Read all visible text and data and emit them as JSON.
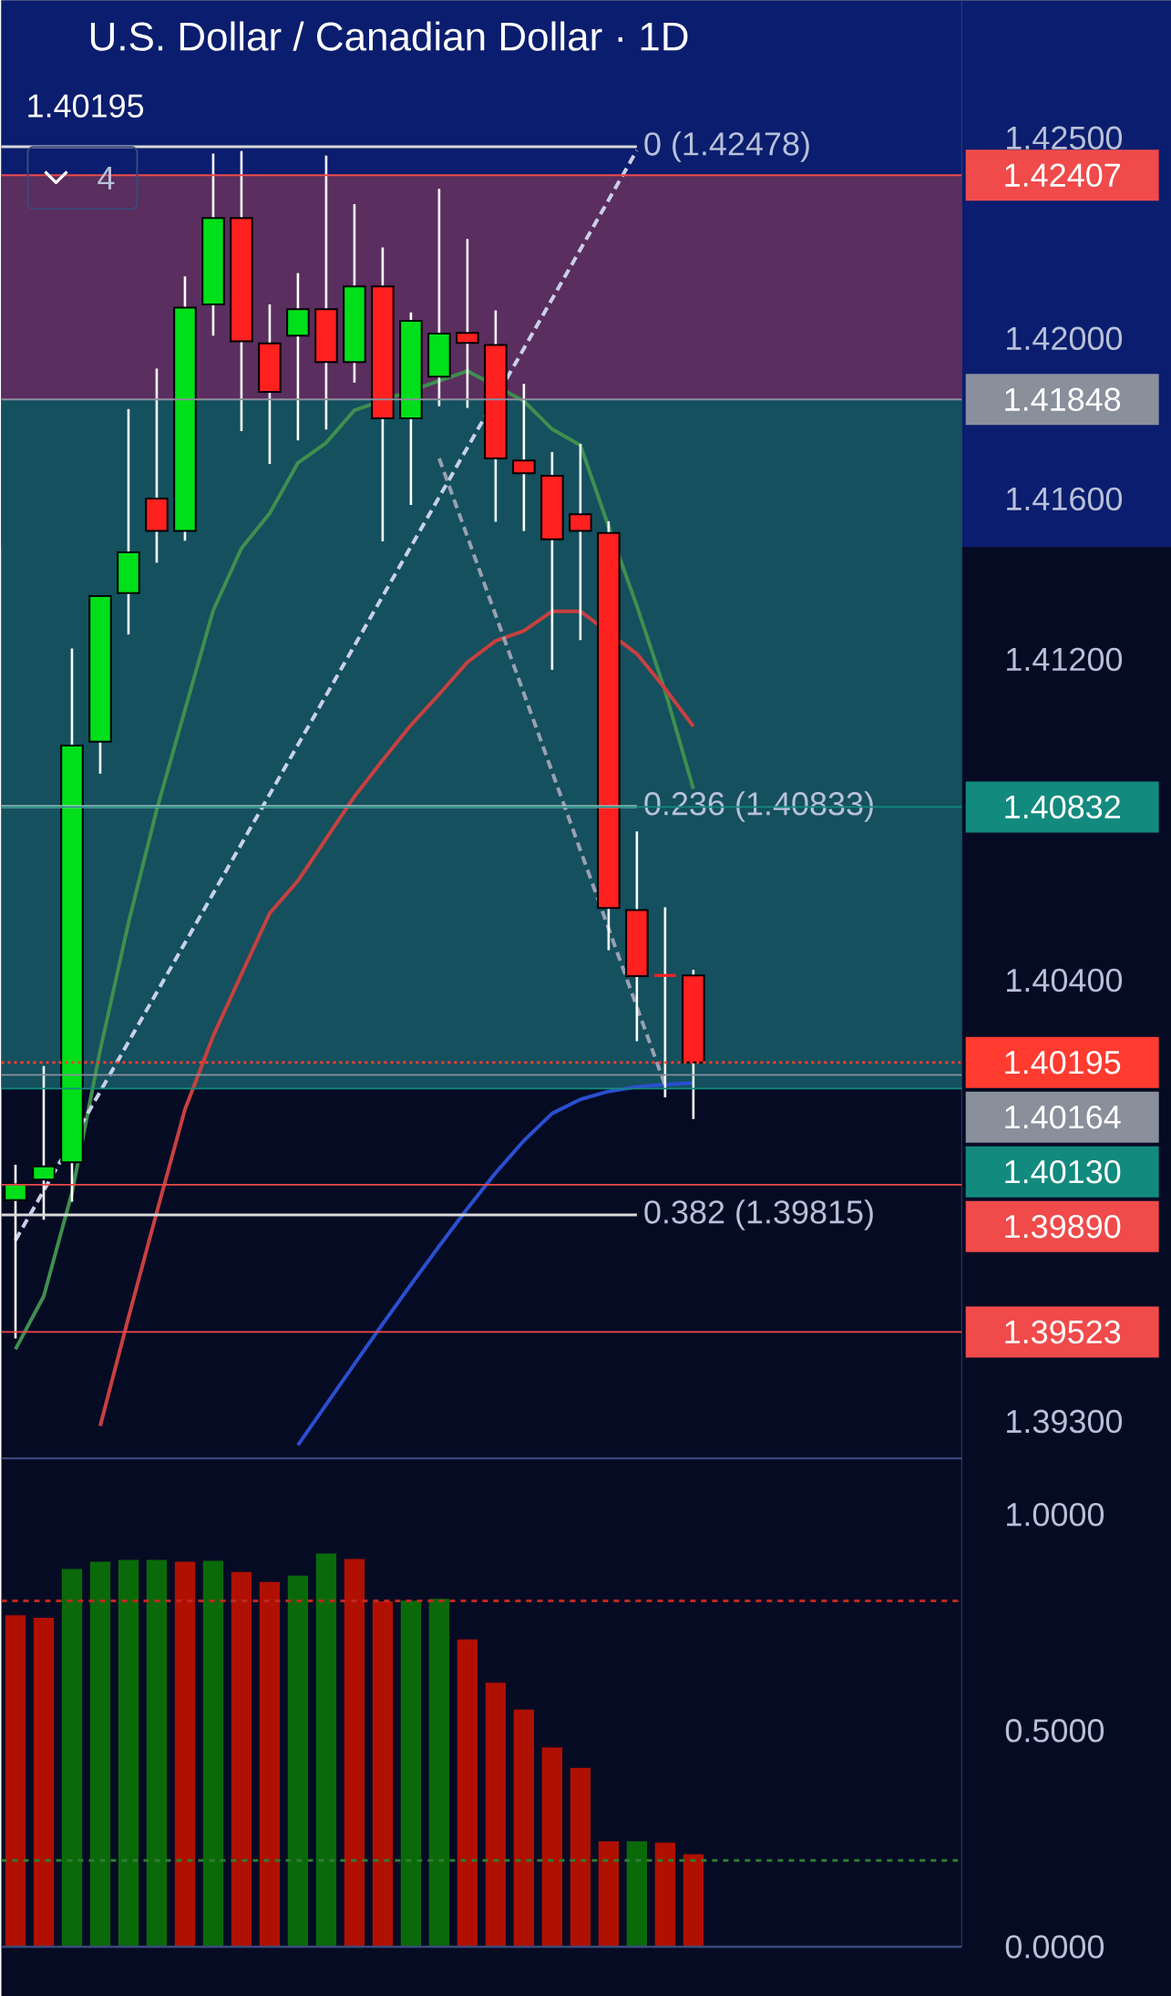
{
  "chart_data": [
    {
      "type": "candlestick",
      "title": "U.S. Dollar / Canadian Dollar · 1D",
      "subtitle": "1.40195",
      "annotations": [
        "4"
      ],
      "categories": [
        null,
        null,
        null,
        null,
        null,
        null,
        null,
        null,
        null,
        null,
        null,
        null,
        null,
        null,
        null,
        null,
        null,
        null,
        null,
        null,
        null,
        null,
        null,
        null,
        null,
        null,
        null,
        null,
        null,
        null,
        null,
        null,
        null,
        null
      ],
      "ohlc": [
        [
          1.39852,
          1.3994,
          1.39507,
          1.39891
        ],
        [
          1.39903,
          1.40186,
          1.39803,
          1.39936
        ],
        [
          1.39946,
          1.41227,
          1.39848,
          1.40985
        ],
        [
          1.40995,
          1.41358,
          1.40915,
          1.41358
        ],
        [
          1.41365,
          1.41824,
          1.41262,
          1.41467
        ],
        [
          1.41601,
          1.41925,
          1.41441,
          1.4152
        ],
        [
          1.4152,
          1.42155,
          1.41496,
          1.42077
        ],
        [
          1.42085,
          1.42461,
          1.42007,
          1.423
        ],
        [
          1.423,
          1.42467,
          1.41769,
          1.41993
        ],
        [
          1.41988,
          1.42085,
          1.41687,
          1.41867
        ],
        [
          1.42007,
          1.42163,
          1.41746,
          1.42073
        ],
        [
          1.42073,
          1.42456,
          1.41773,
          1.41941
        ],
        [
          1.41941,
          1.42335,
          1.4189,
          1.4213
        ],
        [
          1.4213,
          1.42227,
          1.41494,
          1.41801
        ],
        [
          1.41801,
          1.42065,
          1.41585,
          1.42044
        ],
        [
          1.41905,
          1.42373,
          1.41831,
          1.42012
        ],
        [
          1.42014,
          1.42248,
          1.41827,
          1.41989
        ],
        [
          1.41984,
          1.4207,
          1.41543,
          1.41701
        ],
        [
          1.41696,
          1.41887,
          1.4152,
          1.41664
        ],
        [
          1.41658,
          1.41717,
          1.41174,
          1.41499
        ],
        [
          1.41562,
          1.41737,
          1.41248,
          1.4152
        ],
        [
          1.41515,
          1.41544,
          1.40475,
          1.4058
        ],
        [
          1.40575,
          1.40771,
          1.40248,
          1.4041
        ],
        [
          1.40412,
          1.40582,
          1.40108,
          1.40412
        ],
        [
          1.40412,
          1.40426,
          1.40054,
          1.40195
        ],
        null,
        null,
        null,
        null,
        null,
        null,
        null,
        null,
        null
      ],
      "colors": [
        "#00e01a",
        "#00e01a",
        "#00e01a",
        "#00e01a",
        "#00e01a",
        "#ff2020",
        "#00e01a",
        "#00e01a",
        "#ff2020",
        "#ff2020",
        "#00e01a",
        "#ff2020",
        "#00e01a",
        "#ff2020",
        "#00e01a",
        "#00e01a",
        "#ff2020",
        "#ff2020",
        "#ff2020",
        "#ff2020",
        "#ff2020",
        "#ff2020",
        "#ff2020",
        "#ff2020",
        "#ff2020",
        null,
        null,
        null,
        null,
        null,
        null,
        null,
        null,
        null
      ],
      "series": [
        {
          "type": "line",
          "color": "#3f8f4f",
          "line_style": "solid",
          "values": [
            1.3948,
            1.39612,
            1.3987,
            1.40226,
            1.40543,
            1.40825,
            1.41074,
            1.41322,
            1.41477,
            1.41564,
            1.4169,
            1.4174,
            1.41821,
            null,
            null,
            null,
            1.41919,
            null,
            1.41844,
            1.41774,
            1.41734,
            1.41531,
            1.41333,
            1.41121,
            1.40877,
            null,
            null,
            null,
            null,
            null,
            null,
            null,
            null,
            null
          ]
        },
        {
          "type": "line",
          "color": "#c8403f",
          "line_style": "solid",
          "values": [
            null,
            null,
            null,
            1.39289,
            1.39559,
            1.39821,
            1.40078,
            1.40261,
            1.40415,
            1.40567,
            1.40648,
            1.40753,
            1.40858,
            1.40949,
            1.41036,
            1.41113,
            1.41193,
            1.41246,
            1.41271,
            1.4132,
            1.4132,
            null,
            1.41214,
            1.41127,
            1.41033,
            null,
            null,
            null,
            null,
            null,
            null,
            null,
            null,
            null
          ]
        },
        {
          "type": "line",
          "color": "#2a4fd0",
          "line_style": "solid",
          "values": [
            null,
            null,
            null,
            null,
            null,
            null,
            null,
            null,
            null,
            null,
            1.39241,
            1.39342,
            1.39443,
            1.39543,
            1.39641,
            1.39737,
            1.39831,
            1.3992,
            1.4,
            1.40068,
            1.40103,
            1.40123,
            1.40134,
            1.4014,
            1.40144,
            null,
            null,
            null,
            null,
            null,
            null,
            null,
            null,
            null
          ]
        },
        {
          "type": "line",
          "color": "#c8d0e8",
          "line_style": "dashed",
          "values": [
            1.39752,
            null,
            null,
            null,
            null,
            null,
            null,
            null,
            null,
            null,
            null,
            null,
            null,
            null,
            null,
            null,
            null,
            null,
            null,
            null,
            null,
            null,
            1.42469,
            null,
            null,
            null,
            null,
            null,
            null,
            null,
            null,
            null,
            null,
            null
          ]
        },
        {
          "type": "line",
          "color": "#9aa0b0",
          "line_style": "dashed",
          "values": [
            null,
            null,
            null,
            null,
            null,
            null,
            null,
            null,
            null,
            null,
            null,
            null,
            null,
            null,
            null,
            1.41701,
            null,
            null,
            null,
            null,
            null,
            null,
            null,
            1.40138,
            null,
            null,
            null,
            null,
            null,
            null,
            null,
            null,
            null,
            null
          ]
        }
      ],
      "bands": [
        {
          "axis": "y",
          "from": 1.41848,
          "to": 1.42407,
          "color": "#5a2e5e"
        },
        {
          "axis": "y",
          "from": 1.4013,
          "to": 1.41848,
          "color": "#14505e"
        }
      ],
      "ref_lines": [
        {
          "axis": "y",
          "value": 1.42478,
          "label": "0 (1.42478)",
          "color": "#d8d8d8",
          "line_style": "solid"
        },
        {
          "axis": "y",
          "value": 1.40833,
          "label": "0.236 (1.40833)",
          "color": "#d8d8d8",
          "line_style": "solid"
        },
        {
          "axis": "y",
          "value": 1.39815,
          "label": "0.382 (1.39815)",
          "color": "#d8d8d8",
          "line_style": "solid"
        },
        {
          "axis": "y",
          "value": 1.40195,
          "label": "1.40195",
          "color": "#ff3b30",
          "line_style": "dotted"
        },
        {
          "axis": "y",
          "value": 1.42407,
          "label": "1.42407",
          "color": "#f04a4a"
        },
        {
          "axis": "y",
          "value": 1.41848,
          "label": "1.41848",
          "color": "#8a8f9c"
        },
        {
          "axis": "y",
          "value": 1.40832,
          "label": "1.40832",
          "color": "#138a7e"
        },
        {
          "axis": "y",
          "value": 1.40164,
          "label": "1.40164",
          "color": "#8a8f9c"
        },
        {
          "axis": "y",
          "value": 1.4013,
          "label": "1.40130",
          "color": "#138a7e"
        },
        {
          "axis": "y",
          "value": 1.3989,
          "label": "1.39890",
          "color": "#f04a4a"
        },
        {
          "axis": "y",
          "value": 1.39523,
          "label": "1.39523",
          "color": "#f04a4a"
        }
      ],
      "ylim": [
        1.39208,
        1.42843
      ],
      "yticks": [
        {
          "value": 1.425,
          "label": "1.42500"
        },
        {
          "value": 1.42,
          "label": "1.42000"
        },
        {
          "value": 1.416,
          "label": "1.41600"
        },
        {
          "value": 1.412,
          "label": "1.41200"
        },
        {
          "value": 1.404,
          "label": "1.40400"
        },
        {
          "value": 1.393,
          "label": "1.39300"
        }
      ],
      "tick_labels": "y"
    },
    {
      "type": "bar",
      "categories": [
        null,
        null,
        null,
        null,
        null,
        null,
        null,
        null,
        null,
        null,
        null,
        null,
        null,
        null,
        null,
        null,
        null,
        null,
        null,
        null,
        null,
        null,
        null,
        null,
        null,
        null,
        null,
        null,
        null,
        null,
        null,
        null,
        null,
        null
      ],
      "values": [
        0.767,
        0.761,
        0.874,
        0.891,
        0.895,
        0.895,
        0.891,
        0.893,
        0.867,
        0.844,
        0.859,
        0.91,
        0.897,
        0.799,
        0.801,
        0.805,
        0.711,
        0.611,
        0.549,
        0.461,
        0.414,
        0.244,
        0.244,
        0.241,
        0.214,
        null,
        null,
        null,
        null,
        null,
        null,
        null,
        null,
        null
      ],
      "colors": [
        "#b01000",
        "#b01000",
        "#0a6a0a",
        "#0a6a0a",
        "#0a6a0a",
        "#0a6a0a",
        "#b01000",
        "#0a6a0a",
        "#b01000",
        "#b01000",
        "#0a6a0a",
        "#0a6a0a",
        "#b01000",
        "#b01000",
        "#0a6a0a",
        "#0a6a0a",
        "#b01000",
        "#b01000",
        "#b01000",
        "#b01000",
        "#b01000",
        "#b01000",
        "#0a6a0a",
        "#b01000",
        "#b01000",
        null,
        null,
        null,
        null,
        null,
        null,
        null,
        null,
        null
      ],
      "ref_lines": [
        {
          "axis": "y",
          "value": 0.8,
          "color": "#c0281e",
          "line_style": "dashed"
        },
        {
          "axis": "y",
          "value": 0.2,
          "color": "#2e7d32",
          "line_style": "dashed"
        }
      ],
      "ylim": [
        0,
        1.13
      ],
      "yticks": [
        {
          "value": 0,
          "label": "0.0000"
        },
        {
          "value": 0.5,
          "label": "0.5000"
        },
        {
          "value": 1,
          "label": "1.0000"
        }
      ],
      "tick_labels": "y"
    }
  ]
}
